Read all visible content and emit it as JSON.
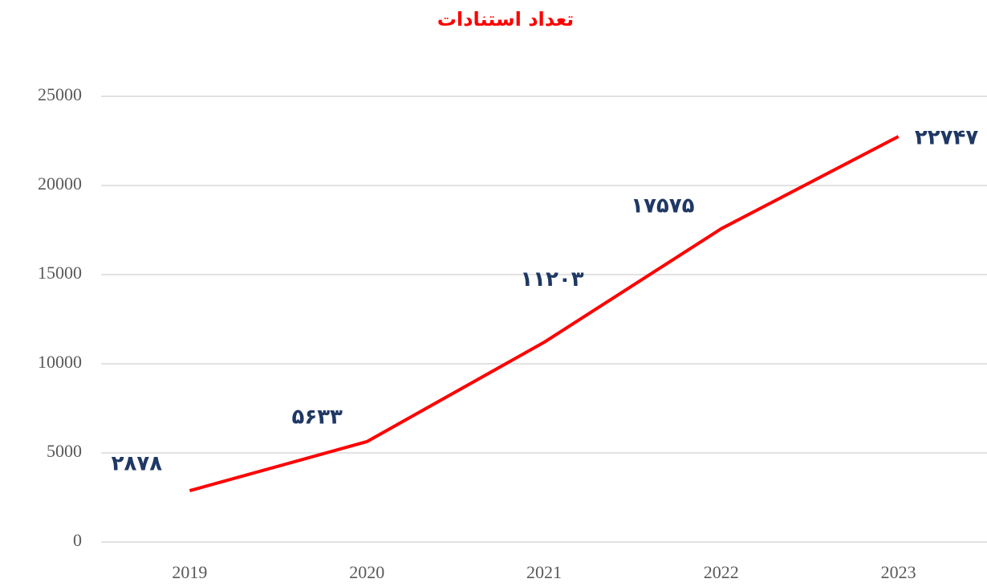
{
  "chart_data": {
    "type": "line",
    "title": "تعداد استنادات",
    "categories": [
      "2019",
      "2020",
      "2021",
      "2022",
      "2023"
    ],
    "values": [
      2878,
      5633,
      11203,
      17575,
      22747
    ],
    "value_labels": [
      "۲۸۷۸",
      "۵۶۳۳",
      "۱۱۲۰۳",
      "۱۷۵۷۵",
      "۲۲۷۴۷"
    ],
    "color": "#ff0000",
    "ylim": [
      0,
      25000
    ],
    "yticks": [
      0,
      5000,
      10000,
      15000,
      20000,
      25000
    ],
    "grid": true
  }
}
